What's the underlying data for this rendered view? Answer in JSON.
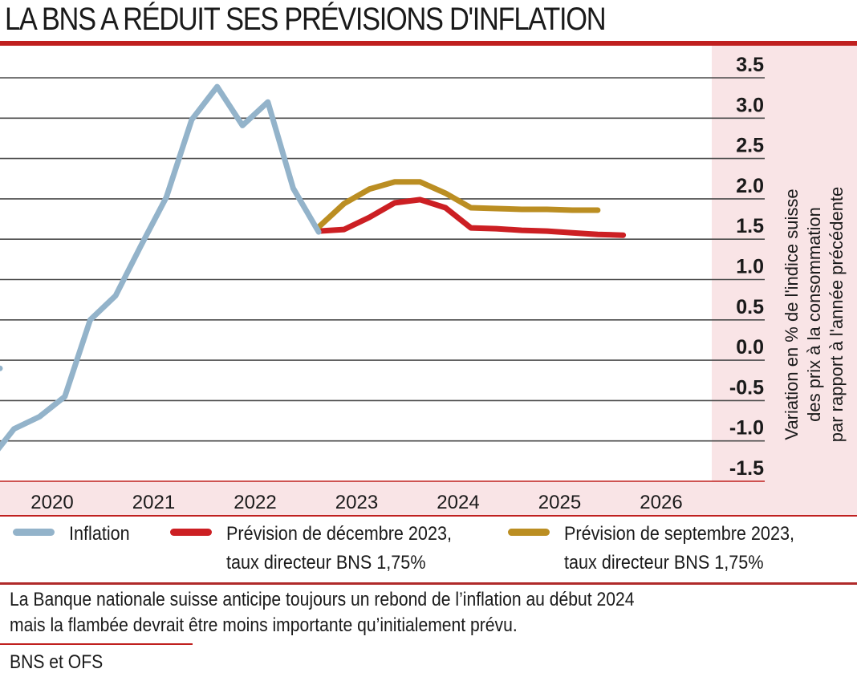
{
  "header": {
    "title": "LA BNS A RÉDUIT SES PRÉVISIONS D'INFLATION"
  },
  "colors": {
    "accent_red": "#c0201f",
    "panel_pink": "#f9e4e6",
    "inflation": "#93b3ca",
    "forecast_dec": "#cc1f23",
    "forecast_sep": "#bb8e22",
    "gridline": "#4a4a4a"
  },
  "chart_data": {
    "type": "line",
    "title": "LA BNS A RÉDUIT SES PRÉVISIONS D'INFLATION",
    "xlabel": "",
    "ylabel": "Variation en % de l'indice suisse des prix à la consommation par rapport à l'année précédente",
    "ylabel_lines": [
      "Variation en % de l'indice suisse",
      "des prix à la consommation",
      "par rapport à l'année précédente"
    ],
    "xlim": [
      2019.5,
      2026.55
    ],
    "ylim": [
      -1.5,
      3.5
    ],
    "x_ticks": [
      {
        "value": 2020,
        "label": "2020"
      },
      {
        "value": 2021,
        "label": "2021"
      },
      {
        "value": 2022,
        "label": "2022"
      },
      {
        "value": 2023,
        "label": "2023"
      },
      {
        "value": 2024,
        "label": "2024"
      },
      {
        "value": 2025,
        "label": "2025"
      },
      {
        "value": 2026,
        "label": "2026"
      }
    ],
    "y_ticks": [
      {
        "value": 3.5,
        "label": "3.5"
      },
      {
        "value": 3.0,
        "label": "3.0"
      },
      {
        "value": 2.5,
        "label": "2.5"
      },
      {
        "value": 2.0,
        "label": "2.0"
      },
      {
        "value": 1.5,
        "label": "1.5"
      },
      {
        "value": 1.0,
        "label": "1.0"
      },
      {
        "value": 0.5,
        "label": "0.5"
      },
      {
        "value": 0.0,
        "label": "0.0"
      },
      {
        "value": -0.5,
        "label": "-0.5"
      },
      {
        "value": -1.0,
        "label": "-1.0"
      },
      {
        "value": -1.5,
        "label": "-1.5"
      }
    ],
    "grid": true,
    "legend_position": "bottom",
    "series": [
      {
        "name": "Inflation",
        "color": "#93b3ca",
        "x": [
          2019.5,
          2019.625,
          2019.875,
          2020.125,
          2020.375,
          2020.625,
          2020.875,
          2021.125,
          2021.375,
          2021.625,
          2021.875,
          2022.125,
          2022.375,
          2022.625,
          2022.875,
          2023.125
        ],
        "values": [
          -0.1,
          -0.12,
          -1.25,
          -0.85,
          -0.7,
          -0.45,
          0.5,
          0.8,
          1.42,
          2.02,
          2.98,
          3.39,
          2.91,
          3.2,
          2.13,
          1.59
        ]
      },
      {
        "name": "Prévision de septembre 2023, taux directeur BNS 1,75%",
        "color": "#bb8e22",
        "x": [
          2023.125,
          2023.375,
          2023.625,
          2023.875,
          2024.125,
          2024.375,
          2024.625,
          2024.875,
          2025.125,
          2025.375,
          2025.625,
          2025.875
        ],
        "values": [
          1.65,
          1.94,
          2.12,
          2.21,
          2.21,
          2.07,
          1.89,
          1.88,
          1.87,
          1.87,
          1.86,
          1.86
        ]
      },
      {
        "name": "Prévision de décembre 2023, taux directeur BNS 1,75%",
        "color": "#cc1f23",
        "x": [
          2023.125,
          2023.375,
          2023.625,
          2023.875,
          2024.125,
          2024.375,
          2024.625,
          2024.875,
          2025.125,
          2025.375,
          2025.625,
          2025.875,
          2026.125
        ],
        "values": [
          1.6,
          1.62,
          1.77,
          1.95,
          1.99,
          1.89,
          1.64,
          1.63,
          1.61,
          1.6,
          1.58,
          1.56,
          1.55
        ]
      }
    ]
  },
  "legend": {
    "items": [
      {
        "label_lines": [
          "Inflation"
        ],
        "color": "#93b3ca"
      },
      {
        "label_lines": [
          "Prévision de décembre 2023,",
          "taux directeur BNS 1,75%"
        ],
        "color": "#cc1f23"
      },
      {
        "label_lines": [
          "Prévision de septembre 2023,",
          "taux directeur BNS 1,75%"
        ],
        "color": "#bb8e22"
      }
    ]
  },
  "caption": {
    "lines": [
      "La Banque nationale suisse anticipe toujours un rebond de l’inflation au début 2024",
      "mais la flambée devrait être moins importante qu’initialement prévu."
    ]
  },
  "source": "BNS et OFS"
}
